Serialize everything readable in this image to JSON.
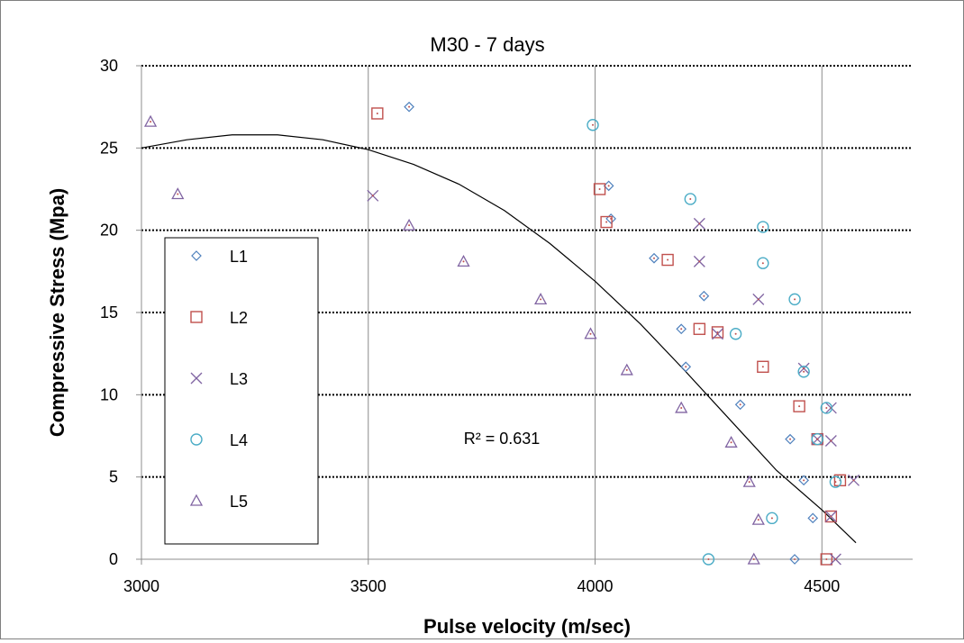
{
  "chart_data": {
    "type": "scatter",
    "title": "M30 - 7 days",
    "xlabel": "Pulse velocity (m/sec)",
    "ylabel": "Compressive Stress (Mpa)",
    "xlim": [
      3000,
      4700
    ],
    "ylim": [
      0,
      30
    ],
    "x_ticks": [
      3000,
      3500,
      4000,
      4500
    ],
    "y_ticks": [
      0,
      5,
      10,
      15,
      20,
      25,
      30
    ],
    "grid": "horizontal dotted major gridlines, vertical solid gridlines",
    "legend_position": "left, inside plot",
    "annotation": "R² = 0.631",
    "series": [
      {
        "name": "L1",
        "marker": "diamond",
        "color": "#4f81bd",
        "points": [
          [
            3590,
            27.5
          ],
          [
            4030,
            22.7
          ],
          [
            4035,
            20.7
          ],
          [
            4130,
            18.3
          ],
          [
            4240,
            16.0
          ],
          [
            4190,
            14.0
          ],
          [
            4200,
            11.7
          ],
          [
            4320,
            9.4
          ],
          [
            4430,
            7.3
          ],
          [
            4460,
            4.8
          ],
          [
            4480,
            2.5
          ],
          [
            4440,
            0.0
          ]
        ]
      },
      {
        "name": "L2",
        "marker": "square",
        "color": "#c0504d",
        "points": [
          [
            3520,
            27.1
          ],
          [
            4010,
            22.5
          ],
          [
            4025,
            20.5
          ],
          [
            4160,
            18.2
          ],
          [
            4230,
            14.0
          ],
          [
            4270,
            13.8
          ],
          [
            4370,
            11.7
          ],
          [
            4450,
            9.3
          ],
          [
            4490,
            7.3
          ],
          [
            4540,
            4.8
          ],
          [
            4520,
            2.6
          ],
          [
            4510,
            0.0
          ]
        ]
      },
      {
        "name": "L3",
        "marker": "x",
        "color": "#8064a2",
        "points": [
          [
            3510,
            22.1
          ],
          [
            4230,
            20.4
          ],
          [
            4230,
            18.1
          ],
          [
            4360,
            15.8
          ],
          [
            4270,
            13.7
          ],
          [
            4460,
            11.6
          ],
          [
            4520,
            9.2
          ],
          [
            4490,
            7.3
          ],
          [
            4520,
            7.2
          ],
          [
            4570,
            4.8
          ],
          [
            4520,
            2.6
          ],
          [
            4530,
            0.0
          ]
        ]
      },
      {
        "name": "L4",
        "marker": "circle",
        "color": "#4bacc6",
        "points": [
          [
            3995,
            26.4
          ],
          [
            4210,
            21.9
          ],
          [
            4370,
            20.2
          ],
          [
            4370,
            18.0
          ],
          [
            4440,
            15.8
          ],
          [
            4310,
            13.7
          ],
          [
            4460,
            11.4
          ],
          [
            4510,
            9.2
          ],
          [
            4490,
            7.3
          ],
          [
            4530,
            4.7
          ],
          [
            4390,
            2.5
          ],
          [
            4250,
            0.0
          ]
        ]
      },
      {
        "name": "L5",
        "marker": "triangle",
        "color": "#8064a2",
        "points": [
          [
            3020,
            26.6
          ],
          [
            3080,
            22.2
          ],
          [
            3590,
            20.3
          ],
          [
            3710,
            18.1
          ],
          [
            3880,
            15.8
          ],
          [
            3990,
            13.7
          ],
          [
            4070,
            11.5
          ],
          [
            4190,
            9.2
          ],
          [
            4300,
            7.1
          ],
          [
            4340,
            4.7
          ],
          [
            4360,
            2.4
          ],
          [
            4350,
            0.0
          ]
        ]
      }
    ],
    "trendline": {
      "type": "polynomial",
      "points": [
        [
          3000,
          25.0
        ],
        [
          3100,
          25.5
        ],
        [
          3200,
          25.8
        ],
        [
          3300,
          25.8
        ],
        [
          3400,
          25.5
        ],
        [
          3500,
          24.9
        ],
        [
          3600,
          24.0
        ],
        [
          3700,
          22.8
        ],
        [
          3800,
          21.2
        ],
        [
          3900,
          19.2
        ],
        [
          4000,
          16.9
        ],
        [
          4100,
          14.3
        ],
        [
          4200,
          11.4
        ],
        [
          4300,
          8.4
        ],
        [
          4400,
          5.4
        ],
        [
          4500,
          3.0
        ],
        [
          4575,
          1.0
        ]
      ]
    }
  }
}
